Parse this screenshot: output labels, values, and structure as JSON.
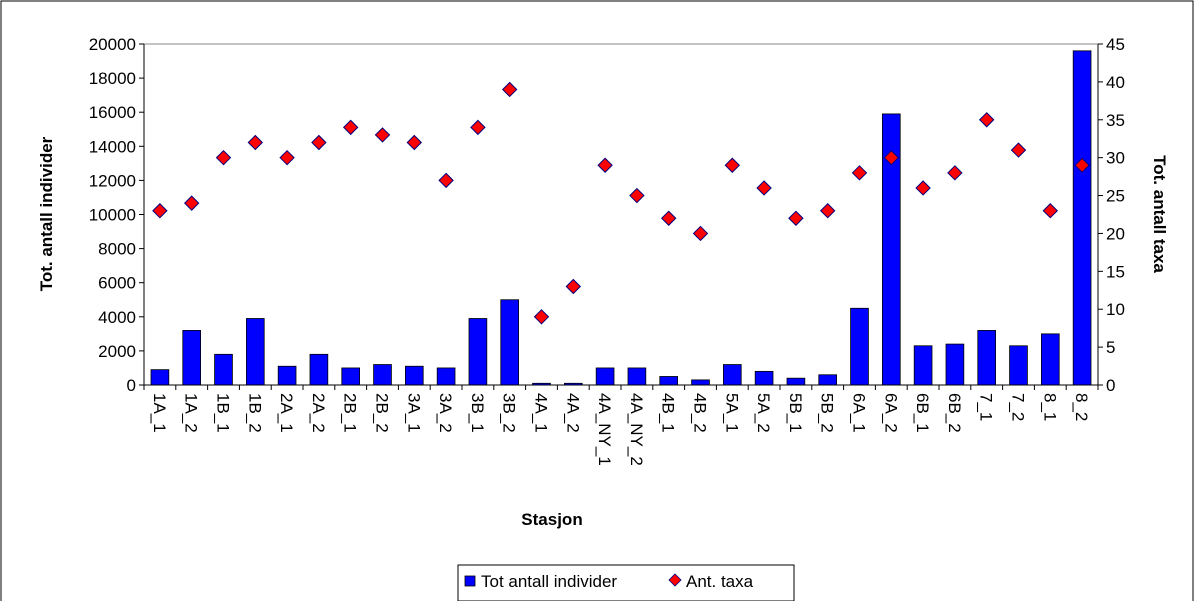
{
  "chart_data": {
    "type": "bar",
    "categories": [
      "1A_1",
      "1A_2",
      "1B_1",
      "1B_2",
      "2A_1",
      "2A_2",
      "2B_1",
      "2B_2",
      "3A_1",
      "3A_2",
      "3B_1",
      "3B_2",
      "4A_1",
      "4A_2",
      "4A_NY_1",
      "4A_NY_2",
      "4B_1",
      "4B_2",
      "5A_1",
      "5A_2",
      "5B_1",
      "5B_2",
      "6A_1",
      "6A_2",
      "6B_1",
      "6B_2",
      "7_1",
      "7_2",
      "8_1",
      "8_2"
    ],
    "series": [
      {
        "name": "Tot antall individer",
        "type": "bar",
        "axis": "left",
        "color": "#0000FF",
        "values": [
          900,
          3200,
          1800,
          3900,
          1100,
          1800,
          1000,
          1200,
          1100,
          1000,
          3900,
          5000,
          100,
          100,
          1000,
          1000,
          500,
          300,
          1200,
          800,
          400,
          600,
          4500,
          15900,
          2300,
          2400,
          3200,
          2300,
          3000,
          19600
        ]
      },
      {
        "name": "Ant. taxa",
        "type": "scatter",
        "marker": "diamond",
        "axis": "right",
        "color": "#FF0000",
        "values": [
          23,
          24,
          30,
          32,
          30,
          32,
          34,
          33,
          32,
          27,
          34,
          39,
          9,
          13,
          29,
          25,
          22,
          20,
          29,
          26,
          22,
          23,
          28,
          30,
          26,
          28,
          35,
          31,
          23,
          29
        ]
      }
    ],
    "title": "",
    "xlabel": "Stasjon",
    "ylabel": "Tot. antall individer",
    "y2label": "Tot. antall taxa",
    "ylim": [
      0,
      20000
    ],
    "yticks": [
      "0",
      "2000",
      "4000",
      "6000",
      "8000",
      "10000",
      "12000",
      "14000",
      "16000",
      "18000",
      "20000"
    ],
    "y2lim": [
      0,
      45
    ],
    "y2ticks": [
      "0",
      "5",
      "10",
      "15",
      "20",
      "25",
      "30",
      "35",
      "40",
      "45"
    ],
    "grid": "top border only",
    "legend": {
      "placement": "bottom",
      "items": [
        "Tot antall individer",
        "Ant. taxa"
      ]
    }
  }
}
